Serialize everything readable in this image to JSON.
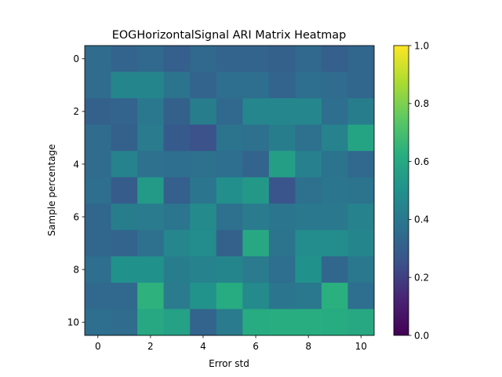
{
  "chart_data": {
    "type": "heatmap",
    "title": "EOGHorizontalSignal ARI Matrix Heatmap",
    "xlabel": "Error std",
    "ylabel": "Sample percentage",
    "x_ticks": [
      0,
      2,
      4,
      6,
      8,
      10
    ],
    "y_ticks": [
      0,
      2,
      4,
      6,
      8,
      10
    ],
    "colormap": "viridis",
    "colorbar": {
      "min": 0.0,
      "max": 1.0,
      "ticks": [
        "0.0",
        "0.2",
        "0.4",
        "0.6",
        "0.8",
        "1.0"
      ]
    },
    "rows": 11,
    "cols": 11,
    "values": [
      [
        0.35,
        0.32,
        0.34,
        0.3,
        0.34,
        0.32,
        0.32,
        0.31,
        0.34,
        0.3,
        0.33
      ],
      [
        0.35,
        0.45,
        0.45,
        0.38,
        0.32,
        0.36,
        0.36,
        0.32,
        0.36,
        0.35,
        0.33
      ],
      [
        0.31,
        0.32,
        0.4,
        0.31,
        0.42,
        0.34,
        0.46,
        0.46,
        0.46,
        0.36,
        0.42
      ],
      [
        0.35,
        0.31,
        0.41,
        0.28,
        0.25,
        0.38,
        0.37,
        0.42,
        0.37,
        0.44,
        0.58
      ],
      [
        0.35,
        0.44,
        0.37,
        0.36,
        0.37,
        0.36,
        0.32,
        0.56,
        0.43,
        0.38,
        0.34
      ],
      [
        0.36,
        0.29,
        0.54,
        0.3,
        0.39,
        0.49,
        0.53,
        0.26,
        0.37,
        0.39,
        0.38
      ],
      [
        0.33,
        0.42,
        0.41,
        0.39,
        0.47,
        0.37,
        0.41,
        0.39,
        0.4,
        0.4,
        0.44
      ],
      [
        0.33,
        0.32,
        0.37,
        0.46,
        0.48,
        0.31,
        0.6,
        0.38,
        0.48,
        0.48,
        0.45
      ],
      [
        0.36,
        0.5,
        0.5,
        0.42,
        0.44,
        0.45,
        0.41,
        0.36,
        0.5,
        0.33,
        0.4
      ],
      [
        0.34,
        0.34,
        0.64,
        0.41,
        0.51,
        0.61,
        0.47,
        0.39,
        0.4,
        0.63,
        0.36
      ],
      [
        0.36,
        0.35,
        0.6,
        0.57,
        0.32,
        0.41,
        0.61,
        0.62,
        0.62,
        0.61,
        0.6
      ]
    ]
  }
}
